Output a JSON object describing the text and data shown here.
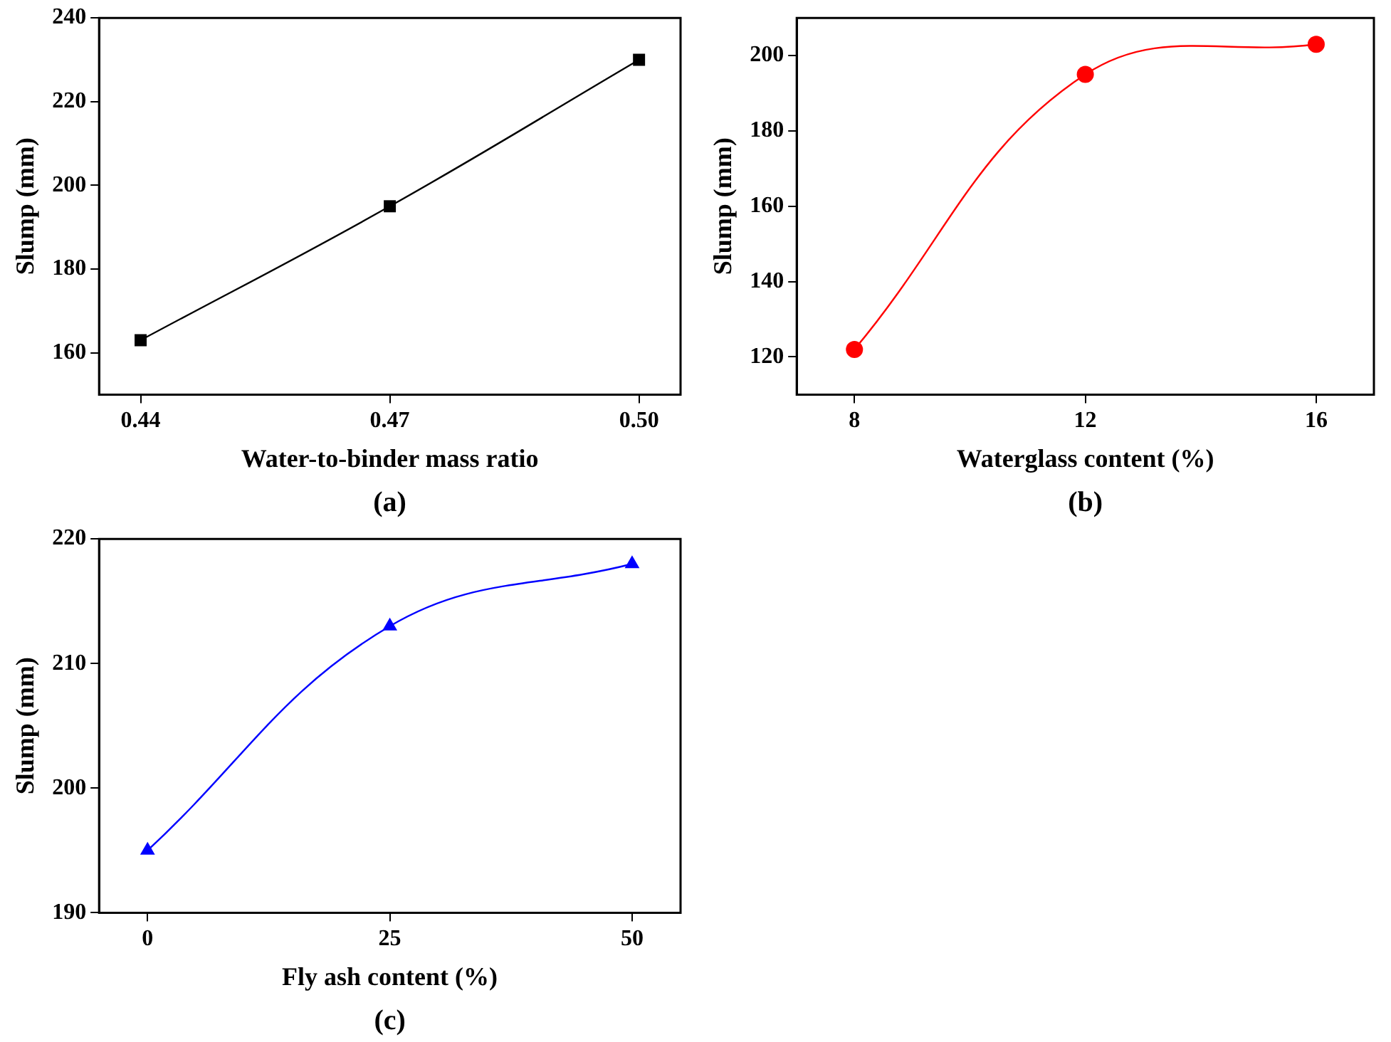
{
  "chart_data": [
    {
      "type": "line",
      "xlabel": "Water-to-binder mass ratio",
      "ylabel": "Slump (mm)",
      "annotations": [
        "(a)"
      ],
      "x": [
        0.44,
        0.47,
        0.5
      ],
      "series": [
        {
          "color": "#000000",
          "values": [
            163,
            195,
            230
          ]
        }
      ],
      "xlim": [
        0.435,
        0.505
      ],
      "xticks": [
        0.44,
        0.47,
        {
          "value": 0.5,
          "label": "0.50"
        }
      ],
      "ylim": [
        150,
        240
      ],
      "yticks": [
        160,
        180,
        200,
        220,
        240
      ],
      "grid": false,
      "legend": false,
      "marker": "square",
      "line_style": "solid"
    },
    {
      "type": "line",
      "xlabel": "Waterglass content (%)",
      "ylabel": "Slump (mm)",
      "annotations": [
        "(b)"
      ],
      "x": [
        8,
        12,
        16
      ],
      "series": [
        {
          "color": "#ff0000",
          "values": [
            122,
            195,
            203
          ]
        }
      ],
      "xlim": [
        7,
        17
      ],
      "xticks": [
        8,
        12,
        16
      ],
      "ylim": [
        110,
        210
      ],
      "yticks": [
        120,
        140,
        160,
        180,
        200
      ],
      "grid": false,
      "legend": false,
      "marker": "circle",
      "line_style": "solid"
    },
    {
      "type": "line",
      "xlabel": "Fly ash content (%)",
      "ylabel": "Slump (mm)",
      "annotations": [
        "(c)"
      ],
      "x": [
        0,
        25,
        50
      ],
      "series": [
        {
          "color": "#0000ff",
          "values": [
            195,
            213,
            218
          ]
        }
      ],
      "xlim": [
        -5,
        55
      ],
      "xticks": [
        0,
        25,
        50
      ],
      "ylim": [
        190,
        220
      ],
      "yticks": [
        190,
        200,
        210,
        220
      ],
      "grid": false,
      "legend": false,
      "marker": "triangle",
      "line_style": "solid"
    }
  ]
}
